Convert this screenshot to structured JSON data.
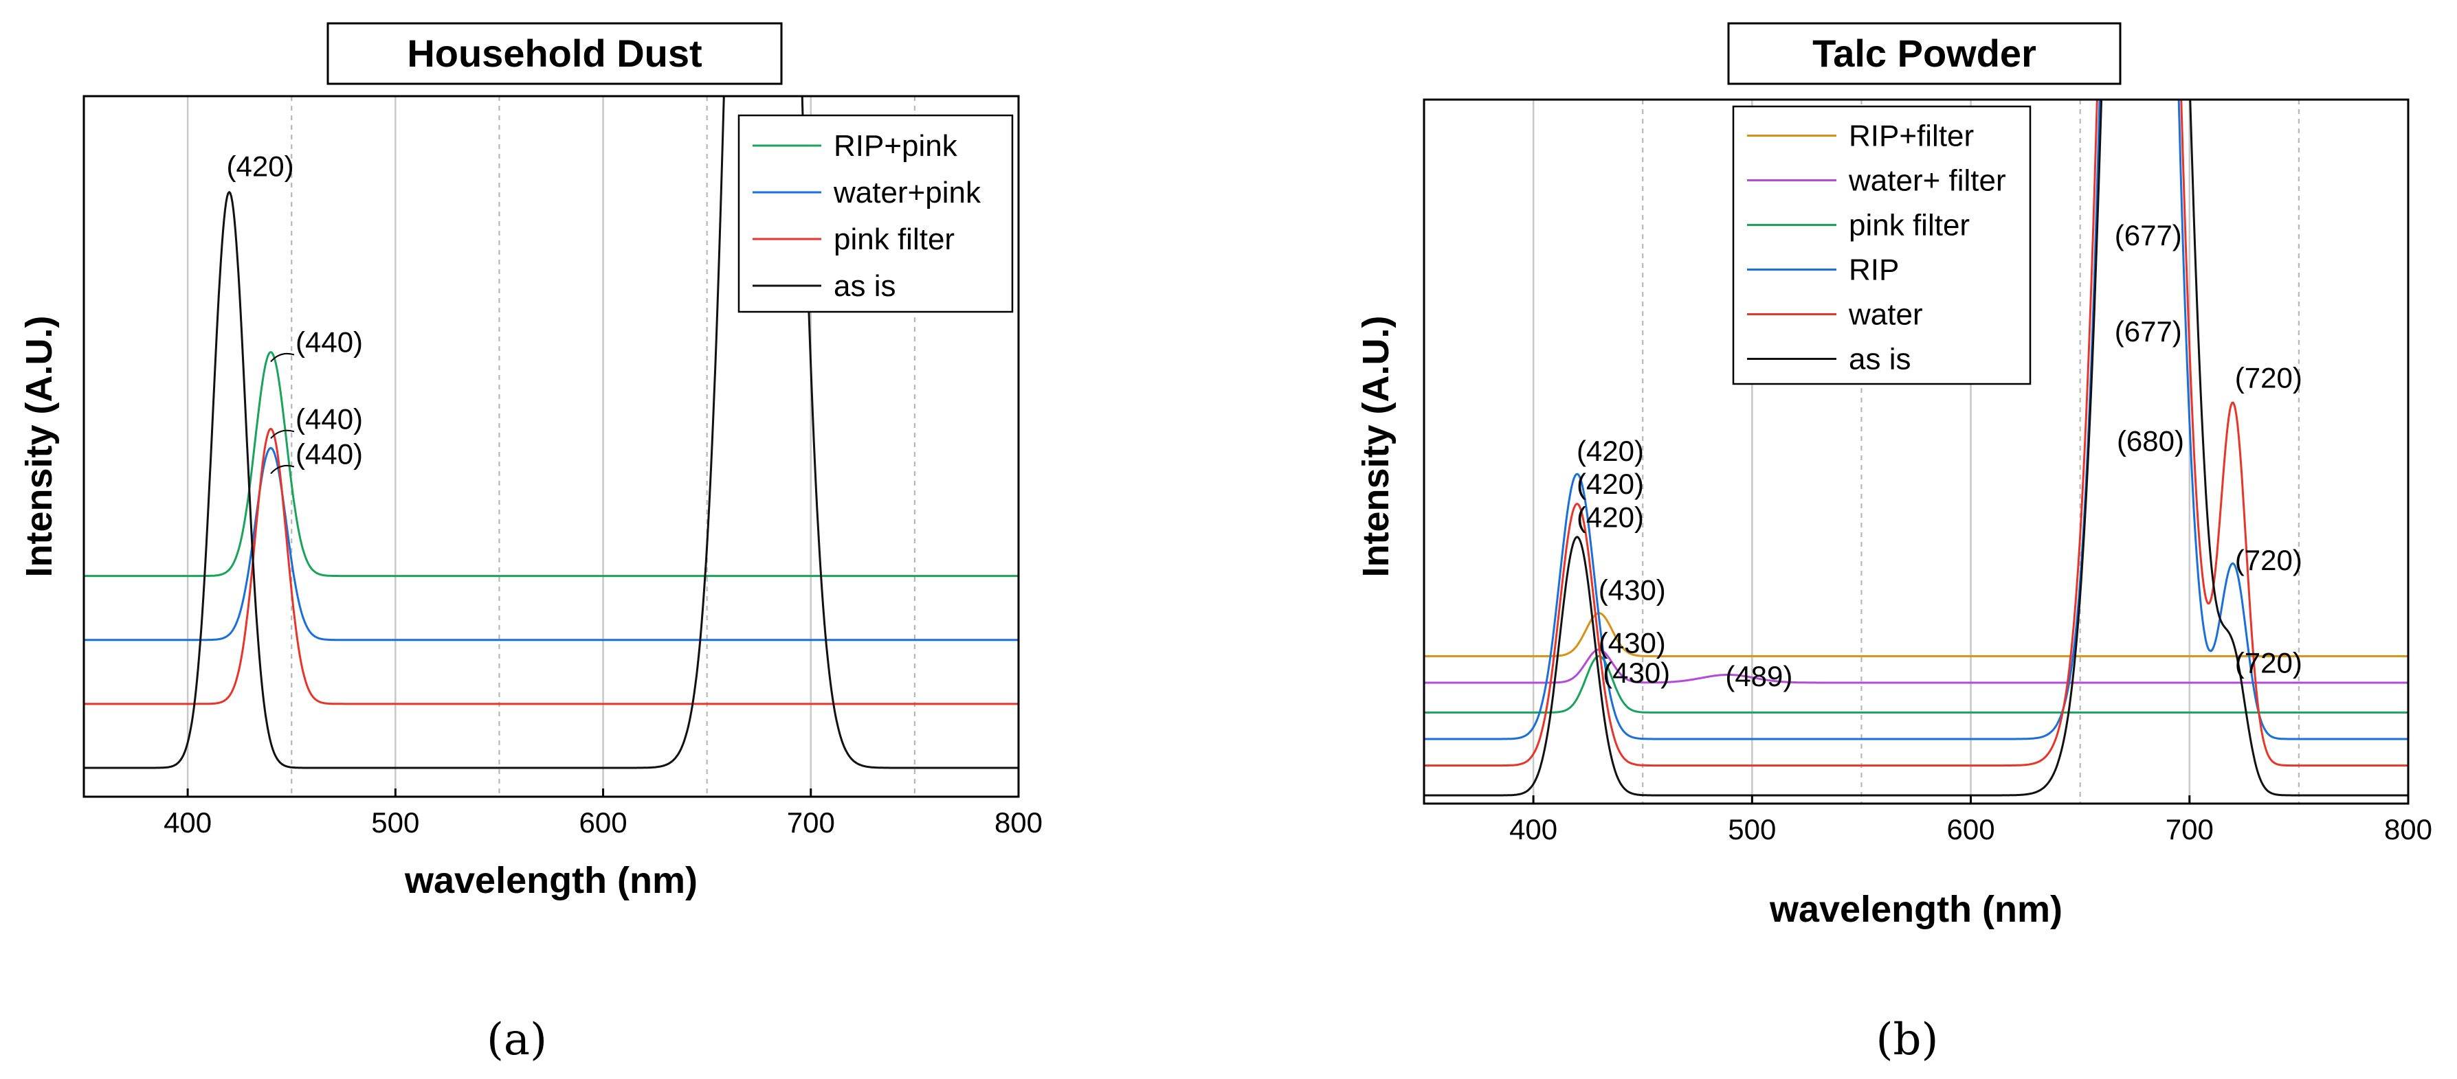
{
  "chart_data": [
    {
      "id": "a",
      "type": "line",
      "title": "Household Dust",
      "caption": "(a)",
      "xlabel": "wavelength (nm)",
      "ylabel": "Intensity (A.U.)",
      "xlim": [
        350,
        800
      ],
      "ylim": [
        0,
        10.5
      ],
      "xticks": [
        400,
        500,
        600,
        700,
        800
      ],
      "solid_gridlines": [
        400,
        500,
        600,
        700
      ],
      "dashed_gridlines": [
        450,
        550,
        650,
        750
      ],
      "legend_position": "top-right",
      "series": [
        {
          "name": "RIP+pink",
          "color": "#1aa35a",
          "offset": 3.0,
          "peaks": [
            {
              "x": 440,
              "height": 3.5,
              "sigma": 7.5
            }
          ]
        },
        {
          "name": "water+pink",
          "color": "#1a6fd8",
          "offset": 2.0,
          "peaks": [
            {
              "x": 440,
              "height": 3.0,
              "sigma": 7.5
            }
          ]
        },
        {
          "name": "pink filter",
          "color": "#e8352c",
          "offset": 1.0,
          "peaks": [
            {
              "x": 440,
              "height": 4.3,
              "sigma": 7.5
            }
          ]
        },
        {
          "name": "as is",
          "color": "#111111",
          "offset": 0.0,
          "peaks": [
            {
              "x": 420,
              "height": 9.0,
              "sigma": 8.0
            },
            {
              "x": 677,
              "height": 30.0,
              "sigma": 13.0
            }
          ]
        }
      ],
      "annotations": [
        {
          "text": "(420)",
          "x": 420,
          "y": 9.25,
          "leader": false
        },
        {
          "text": "(440)",
          "x": 440,
          "y": 6.5,
          "leader": true
        },
        {
          "text": "(440)",
          "x": 440,
          "y": 5.3,
          "leader": true
        },
        {
          "text": "(440)",
          "x": 440,
          "y": 4.75,
          "leader": true
        }
      ],
      "legend_entries_order": [
        "RIP+pink",
        "water+pink",
        "pink filter",
        "as is"
      ]
    },
    {
      "id": "b",
      "type": "line",
      "title": "Talc Powder",
      "caption": "(b)",
      "xlabel": "wavelength (nm)",
      "ylabel": "Intensity (A.U.)",
      "xlim": [
        350,
        800
      ],
      "ylim": [
        0,
        10.5
      ],
      "xticks": [
        400,
        500,
        600,
        700,
        800
      ],
      "solid_gridlines": [
        400,
        500,
        600,
        700
      ],
      "dashed_gridlines": [
        450,
        550,
        650,
        750
      ],
      "legend_position": "top-left",
      "series": [
        {
          "name": "RIP+filter",
          "color": "#d69216",
          "offset": 2.1,
          "peaks": [
            {
              "x": 430,
              "height": 0.65,
              "sigma": 6.0
            }
          ]
        },
        {
          "name": "water+ filter",
          "color": "#b44ad8",
          "offset": 1.7,
          "peaks": [
            {
              "x": 430,
              "height": 0.5,
              "sigma": 6.0
            },
            {
              "x": 489,
              "height": 0.12,
              "sigma": 12.0
            }
          ]
        },
        {
          "name": "pink filter",
          "color": "#1aa35a",
          "offset": 1.25,
          "peaks": [
            {
              "x": 430,
              "height": 0.85,
              "sigma": 6.0
            }
          ]
        },
        {
          "name": "RIP",
          "color": "#1a6fd8",
          "offset": 0.85,
          "peaks": [
            {
              "x": 420,
              "height": 4.0,
              "sigma": 8.0
            },
            {
              "x": 677,
              "height": 30.0,
              "sigma": 12.0
            },
            {
              "x": 720,
              "height": 2.6,
              "sigma": 6.0
            }
          ]
        },
        {
          "name": "water",
          "color": "#e8352c",
          "offset": 0.45,
          "peaks": [
            {
              "x": 420,
              "height": 3.95,
              "sigma": 8.0
            },
            {
              "x": 677,
              "height": 30.0,
              "sigma": 13.0
            },
            {
              "x": 720,
              "height": 5.35,
              "sigma": 6.0
            }
          ]
        },
        {
          "name": "as is",
          "color": "#111111",
          "offset": 0.0,
          "peaks": [
            {
              "x": 420,
              "height": 3.9,
              "sigma": 8.0
            },
            {
              "x": 680,
              "height": 30.0,
              "sigma": 14.0
            },
            {
              "x": 720,
              "height": 1.8,
              "sigma": 6.0
            }
          ]
        }
      ],
      "annotations": [
        {
          "text": "(420)",
          "x": 421,
          "y": 5.05
        },
        {
          "text": "(420)",
          "x": 421,
          "y": 4.55
        },
        {
          "text": "(420)",
          "x": 421,
          "y": 4.05
        },
        {
          "text": "(430)",
          "x": 431,
          "y": 2.95
        },
        {
          "text": "(430)",
          "x": 431,
          "y": 2.15
        },
        {
          "text": "(430)",
          "x": 433,
          "y": 1.7
        },
        {
          "text": "(489)",
          "x": 489,
          "y": 1.65
        },
        {
          "text": "(677)",
          "x": 667,
          "y": 8.3
        },
        {
          "text": "(677)",
          "x": 667,
          "y": 6.85
        },
        {
          "text": "(680)",
          "x": 668,
          "y": 5.2
        },
        {
          "text": "(720)",
          "x": 722,
          "y": 6.15
        },
        {
          "text": "(720)",
          "x": 722,
          "y": 3.4
        },
        {
          "text": "(720)",
          "x": 722,
          "y": 1.85
        }
      ],
      "legend_entries_order": [
        "RIP+filter",
        "water+ filter",
        "pink filter",
        "RIP",
        "water",
        "as is"
      ]
    }
  ]
}
